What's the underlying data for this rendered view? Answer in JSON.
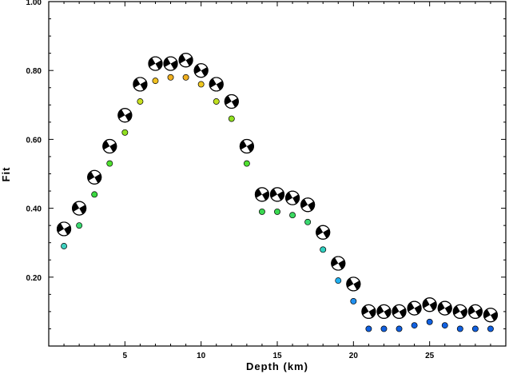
{
  "chart_data": {
    "type": "scatter",
    "title": "",
    "xlabel": "Depth (km)",
    "ylabel": "Fit",
    "xlim": [
      0,
      30
    ],
    "ylim": [
      0,
      1.0
    ],
    "x_ticks": [
      5,
      10,
      15,
      20,
      25
    ],
    "x_tick_labels": [
      "5",
      "10",
      "15",
      "20",
      "25"
    ],
    "y_ticks": [
      0.2,
      0.4,
      0.6,
      0.8,
      1.0
    ],
    "y_tick_labels": [
      "0.20",
      "0.40",
      "0.60",
      "0.80",
      "1.00"
    ],
    "grid": false,
    "legend": "none",
    "series": [
      {
        "marker": "colored-circle",
        "x": [
          1,
          2,
          3,
          4,
          5,
          6,
          7,
          8,
          9,
          10,
          11,
          12,
          13,
          14,
          15,
          16,
          17,
          18,
          19,
          20,
          21,
          22,
          23,
          24,
          25,
          26,
          27,
          28,
          29
        ],
        "values": [
          0.29,
          0.35,
          0.44,
          0.53,
          0.62,
          0.71,
          0.77,
          0.78,
          0.78,
          0.76,
          0.71,
          0.66,
          0.53,
          0.39,
          0.39,
          0.38,
          0.36,
          0.28,
          0.19,
          0.13,
          0.05,
          0.05,
          0.05,
          0.06,
          0.07,
          0.06,
          0.05,
          0.05,
          0.05
        ],
        "colors": [
          "#40d0c0",
          "#3ad870",
          "#3ad840",
          "#50e030",
          "#90e020",
          "#c8e020",
          "#f0c020",
          "#f0b020",
          "#f0b020",
          "#f0c820",
          "#c0e020",
          "#90e020",
          "#50e030",
          "#3ad850",
          "#3ad850",
          "#3ad860",
          "#3ad870",
          "#30d0c0",
          "#20b0f0",
          "#2090f0",
          "#1060e0",
          "#1060e0",
          "#1060e0",
          "#1060e0",
          "#1060e0",
          "#1060e0",
          "#1060e0",
          "#1060e0",
          "#1060e0"
        ]
      },
      {
        "marker": "mechanism-beachball",
        "x": [
          1,
          2,
          3,
          4,
          5,
          6,
          7,
          8,
          9,
          10,
          11,
          12,
          13,
          14,
          15,
          16,
          17,
          18,
          19,
          20,
          21,
          22,
          23,
          24,
          25,
          26,
          27,
          28,
          29
        ],
        "values": [
          0.34,
          0.4,
          0.49,
          0.58,
          0.67,
          0.76,
          0.82,
          0.82,
          0.83,
          0.8,
          0.76,
          0.71,
          0.58,
          0.44,
          0.44,
          0.43,
          0.41,
          0.33,
          0.24,
          0.18,
          0.1,
          0.1,
          0.1,
          0.11,
          0.12,
          0.11,
          0.1,
          0.1,
          0.09
        ]
      }
    ]
  }
}
